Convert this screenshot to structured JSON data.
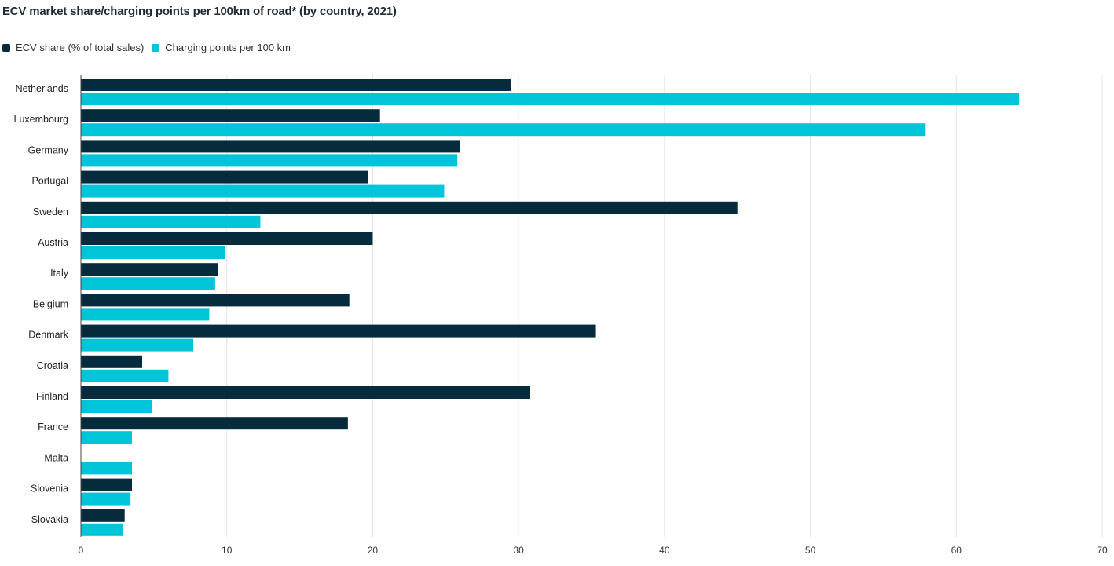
{
  "chart_data": {
    "type": "bar",
    "orientation": "horizontal",
    "title": "ECV market share/charging points per 100km of road* (by country, 2021)",
    "categories": [
      "Netherlands",
      "Luxembourg",
      "Germany",
      "Portugal",
      "Sweden",
      "Austria",
      "Italy",
      "Belgium",
      "Denmark",
      "Croatia",
      "Finland",
      "France",
      "Malta",
      "Slovenia",
      "Slovakia"
    ],
    "series": [
      {
        "name": "ECV share (% of total sales)",
        "color": "#062b3d",
        "values": [
          29.5,
          20.5,
          26.0,
          19.7,
          45.0,
          20.0,
          9.4,
          18.4,
          35.3,
          4.2,
          30.8,
          18.3,
          0,
          3.5,
          3.0
        ]
      },
      {
        "name": "Charging points per 100 km",
        "color": "#00c4d8",
        "values": [
          64.3,
          57.9,
          25.8,
          24.9,
          12.3,
          9.9,
          9.2,
          8.8,
          7.7,
          6.0,
          4.9,
          3.5,
          3.5,
          3.4,
          2.9
        ]
      }
    ],
    "xlim": [
      0,
      70
    ],
    "xticks": [
      "0",
      "10",
      "20",
      "30",
      "40",
      "50",
      "60",
      "70"
    ],
    "grid": true,
    "legend_position": "top-left"
  }
}
